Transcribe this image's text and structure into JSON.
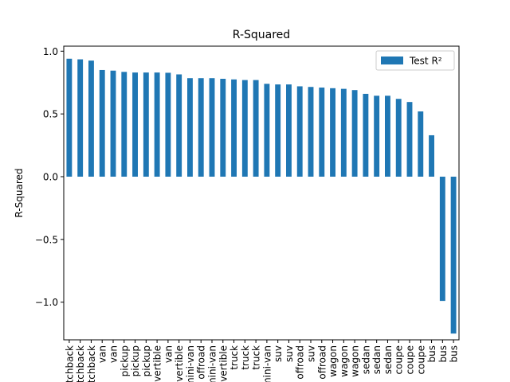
{
  "chart_data": {
    "type": "bar",
    "title": "R-Squared",
    "xlabel": "",
    "ylabel": "R-Squared",
    "ylim": [
      -1.3,
      1.04
    ],
    "yticks": [
      -1.0,
      -0.5,
      0.0,
      0.5,
      1.0
    ],
    "ytick_labels": [
      "−1.0",
      "−0.5",
      "0.0",
      "0.5",
      "1.0"
    ],
    "legend": {
      "position": "top-right"
    },
    "grid": false,
    "categories": [
      "hatchback",
      "hatchback",
      "hatchback",
      "van",
      "van",
      "pickup",
      "pickup",
      "pickup",
      "convertible",
      "van",
      "convertible",
      "mini-van",
      "offroad",
      "mini-van",
      "convertible",
      "truck",
      "truck",
      "truck",
      "mini-van",
      "suv",
      "suv",
      "offroad",
      "suv",
      "offroad",
      "wagon",
      "wagon",
      "wagon",
      "sedan",
      "sedan",
      "sedan",
      "coupe",
      "coupe",
      "coupe",
      "bus",
      "bus",
      "bus"
    ],
    "series": [
      {
        "name": "Test R²",
        "color": "#1f77b4",
        "values": [
          0.94,
          0.935,
          0.925,
          0.85,
          0.845,
          0.835,
          0.83,
          0.83,
          0.83,
          0.828,
          0.815,
          0.785,
          0.785,
          0.785,
          0.78,
          0.775,
          0.77,
          0.77,
          0.74,
          0.735,
          0.735,
          0.72,
          0.715,
          0.71,
          0.705,
          0.7,
          0.69,
          0.66,
          0.645,
          0.645,
          0.62,
          0.595,
          0.52,
          0.33,
          -0.99,
          -1.25
        ]
      }
    ]
  }
}
